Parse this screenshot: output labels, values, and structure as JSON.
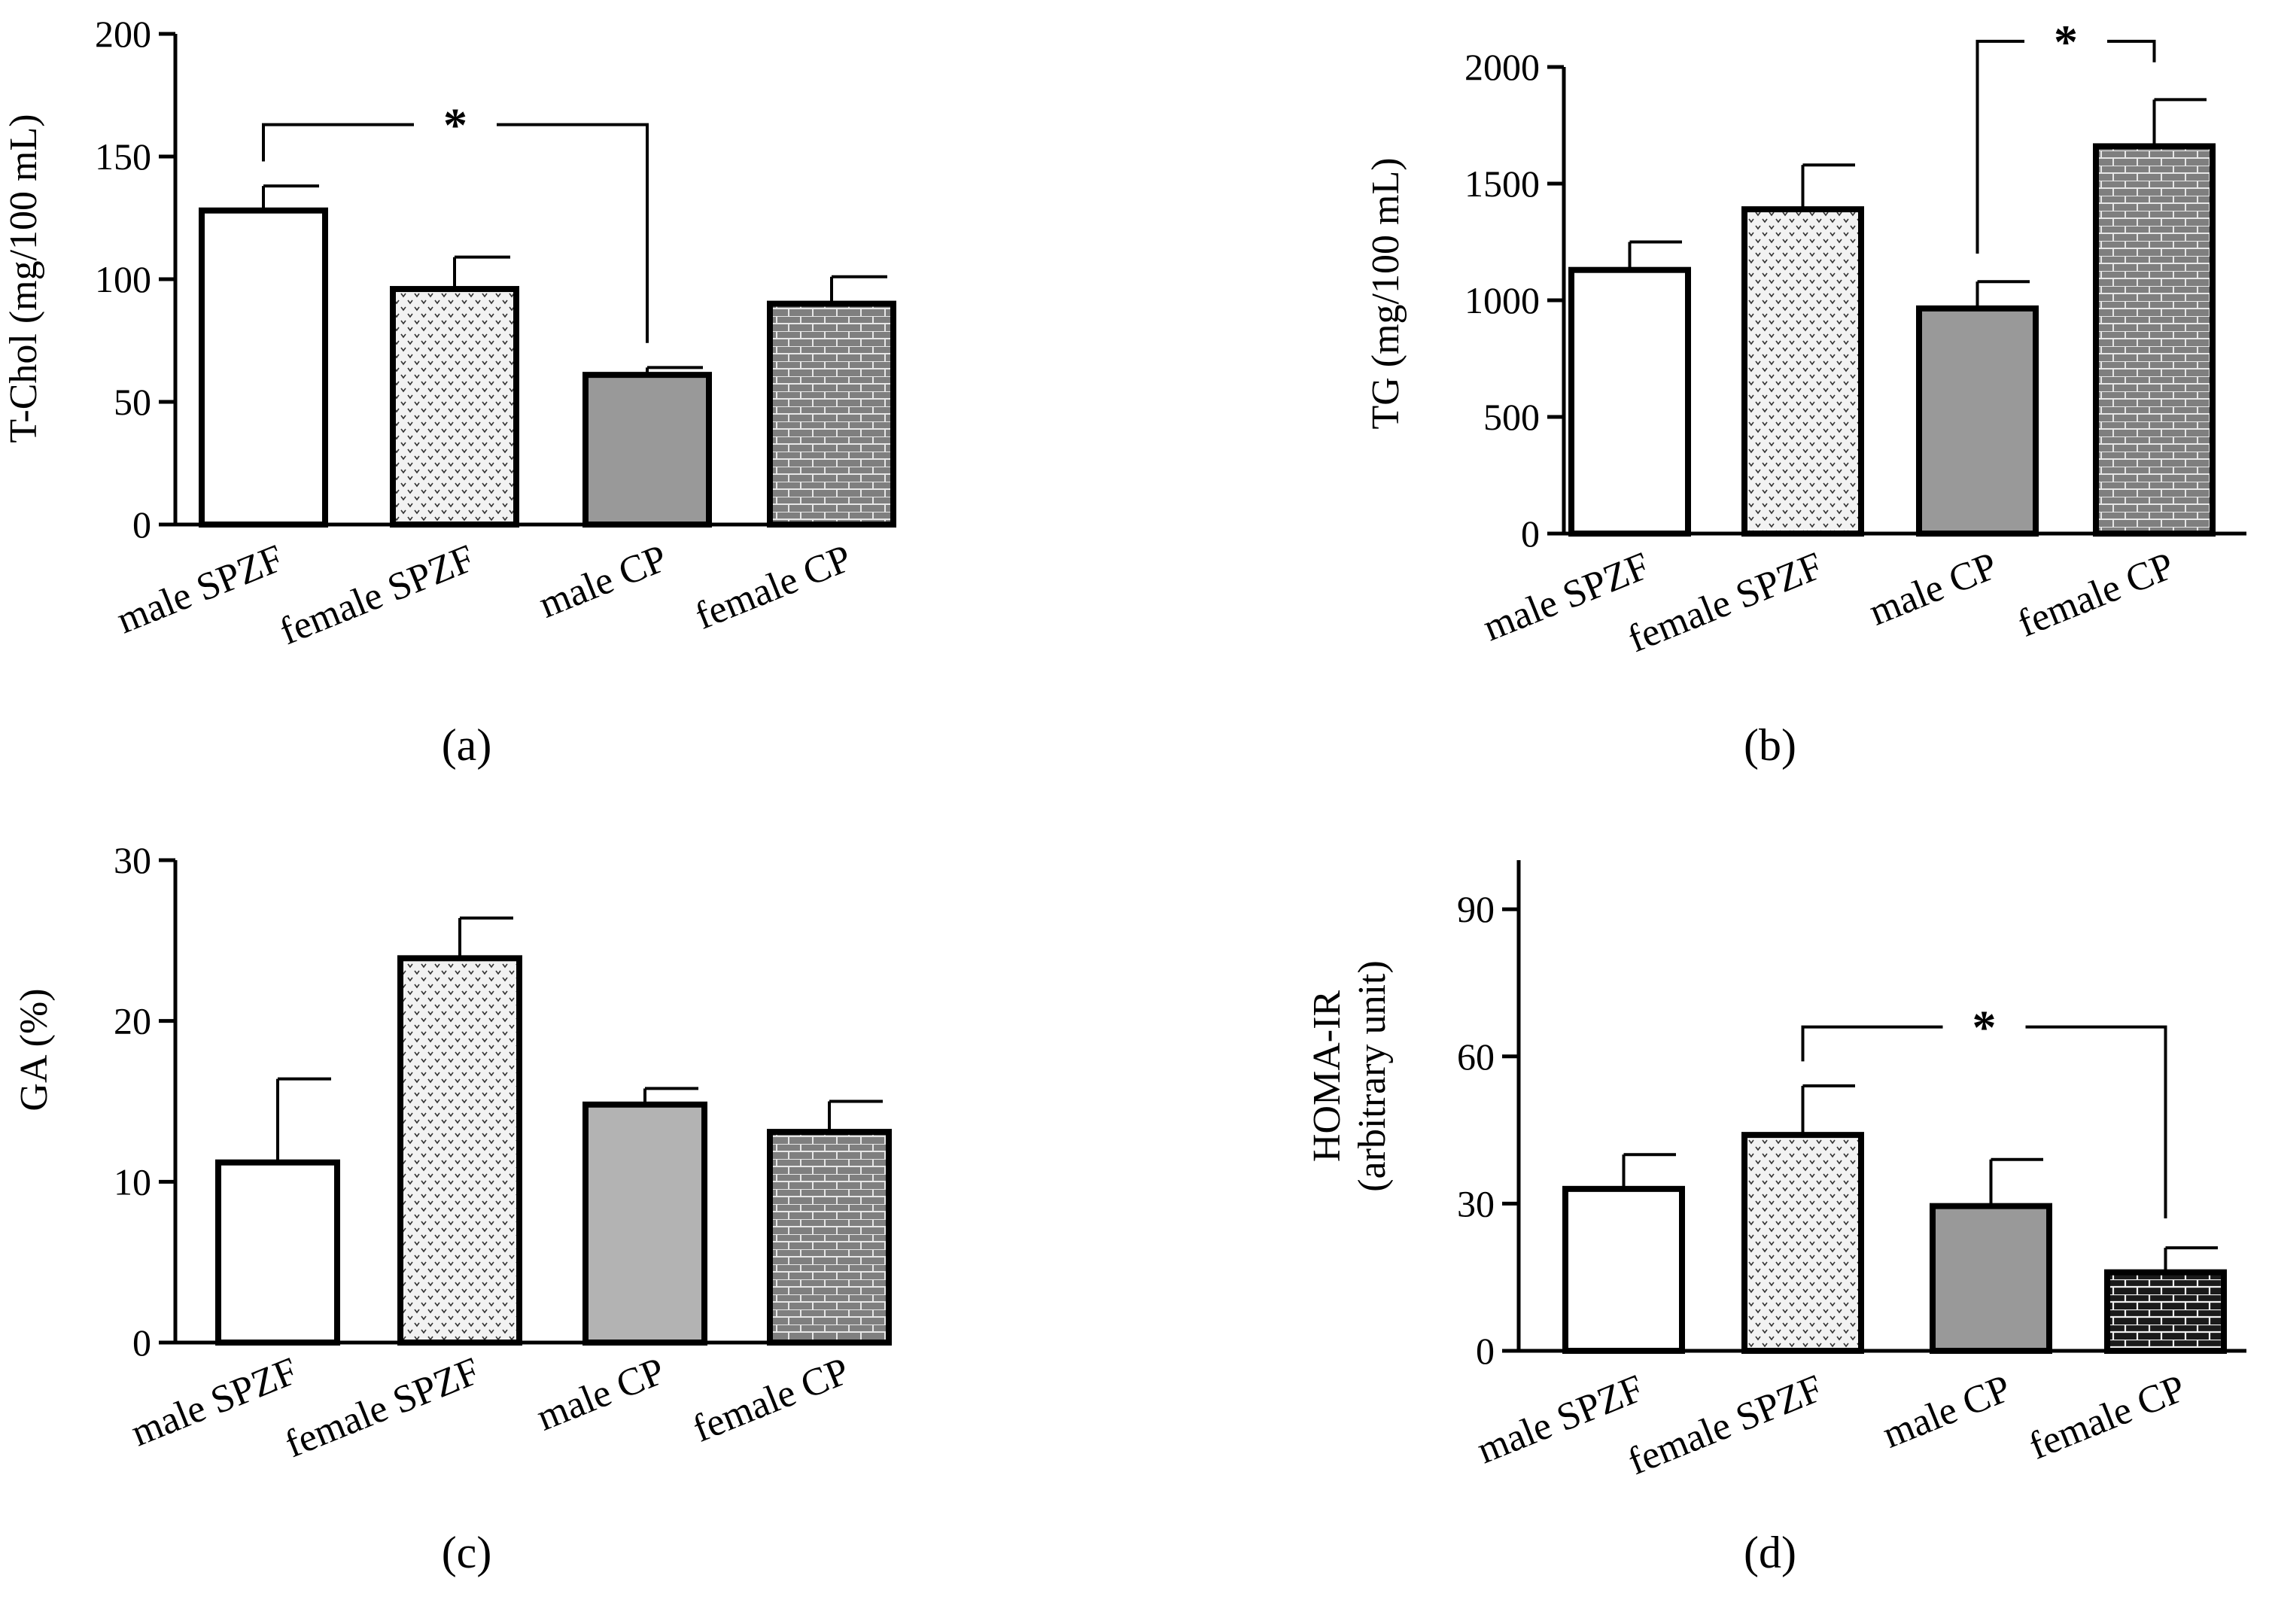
{
  "colors": {
    "axis": "#000000",
    "open_fill": "#ffffff",
    "dots_bg": "#f2f2f2",
    "dots_fg": "#333333",
    "solid_gray": "#999999",
    "solid_gray_light": "#b3b3b3",
    "brick_bg": "#7f7f7f",
    "brick_line": "#e6e6e6",
    "brick_dark_bg": "#1a1a1a",
    "brick_dark_line": "#f0f0f0"
  },
  "chart_data": [
    {
      "panel": "a",
      "panel_label": "(a)",
      "type": "bar",
      "ylabel": "T-Chol (mg/100 mL)",
      "ylim": [
        0,
        200
      ],
      "yticks": [
        0,
        50,
        100,
        150,
        200
      ],
      "categories": [
        "male SPZF",
        "female SPZF",
        "male CP",
        "female CP"
      ],
      "values": [
        128,
        96,
        61,
        90
      ],
      "errors": [
        10,
        13,
        3,
        11
      ],
      "fills": [
        "open",
        "dots",
        "solid",
        "brick"
      ],
      "significance": [
        {
          "from": 0,
          "to": 2,
          "label": "*",
          "y": 163,
          "left_drop": 148,
          "right_drop": 74
        }
      ]
    },
    {
      "panel": "b",
      "panel_label": "(b)",
      "type": "bar",
      "ylabel": "TG (mg/100 mL)",
      "ylim": [
        0,
        2000
      ],
      "yticks": [
        0,
        500,
        1000,
        1500,
        2000
      ],
      "categories": [
        "male SPZF",
        "female SPZF",
        "male CP",
        "female CP"
      ],
      "values": [
        1130,
        1390,
        965,
        1660
      ],
      "errors": [
        120,
        190,
        115,
        200
      ],
      "fills": [
        "open",
        "dots",
        "solid",
        "brick"
      ],
      "significance": [
        {
          "from": 2,
          "to": 3,
          "label": "*",
          "y": 2110,
          "left_drop": 1200,
          "right_drop": 2020
        }
      ]
    },
    {
      "panel": "c",
      "panel_label": "(c)",
      "type": "bar",
      "ylabel": "GA (%)",
      "ylim": [
        0,
        30
      ],
      "yticks": [
        0,
        10,
        20,
        30
      ],
      "categories": [
        "male SPZF",
        "female SPZF",
        "male CP",
        "female CP"
      ],
      "values": [
        11.2,
        23.9,
        14.8,
        13.1
      ],
      "errors": [
        5.2,
        2.5,
        1.0,
        1.9
      ],
      "fills": [
        "open",
        "dots",
        "solid_light",
        "brick"
      ],
      "significance": []
    },
    {
      "panel": "d",
      "panel_label": "(d)",
      "type": "bar",
      "ylabel": "HOMA-IR",
      "ylabel2": "(arbitrary unit)",
      "ylim": [
        0,
        100
      ],
      "yticks": [
        0,
        30,
        60,
        90
      ],
      "categories": [
        "male SPZF",
        "female SPZF",
        "male CP",
        "female CP"
      ],
      "values": [
        33,
        44,
        29.5,
        16
      ],
      "errors": [
        7,
        10,
        9.5,
        5
      ],
      "fills": [
        "open",
        "dots",
        "solid",
        "brick_dark"
      ],
      "significance": [
        {
          "from": 1,
          "to": 3,
          "label": "*",
          "y": 66,
          "left_drop": 59,
          "right_drop": 27
        }
      ]
    }
  ]
}
